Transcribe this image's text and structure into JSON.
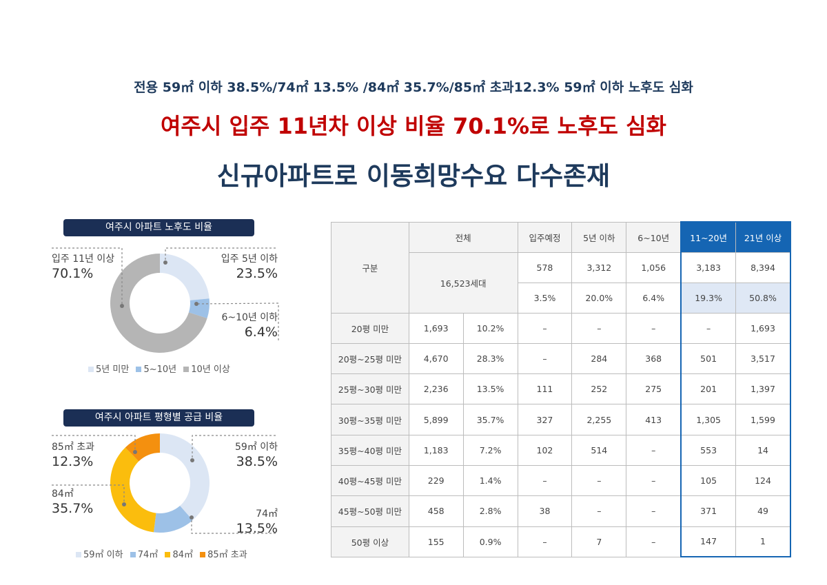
{
  "header": {
    "subtitle": "전용 59㎡ 이하 38.5%/74㎡ 13.5% /84㎡ 35.7%/85㎡ 초과12.3% 59㎡ 이하 노후도 심화",
    "headline_red": "여주시 입주 11년차 이상 비율 70.1%로 노후도 심화",
    "headline_main": "신규아파트로 이동희망수요 다수존재"
  },
  "colors": {
    "navy": "#1b2f55",
    "red": "#c00000",
    "blue": "#1565b3",
    "light_blue": "#dfe8f5",
    "slice_light": "#dce6f4",
    "slice_mid": "#9dc1e7",
    "slice_gray": "#b5b5b5",
    "slice_yellow": "#fbbd0d",
    "slice_orange": "#f4900f"
  },
  "chart_data": [
    {
      "type": "pie",
      "title": "여주시 아파트 노후도 비율",
      "slices": [
        {
          "legend": "5년 미만",
          "label": "입주 5년 이하",
          "value_text": "23.5%",
          "value": 23.5,
          "color": "#dce6f4"
        },
        {
          "legend": "5~10년",
          "label": "6~10년 이하",
          "value_text": "6.4%",
          "value": 6.4,
          "color": "#9dc1e7"
        },
        {
          "legend": "10년 이상",
          "label": "입주 11년 이상",
          "value_text": "70.1%",
          "value": 70.1,
          "color": "#b5b5b5"
        }
      ]
    },
    {
      "type": "pie",
      "title": "여주시 아파트 평형별 공급 비율",
      "slices": [
        {
          "legend": "59㎡ 이하",
          "label": "59㎡ 이하",
          "value_text": "38.5%",
          "value": 38.5,
          "color": "#dce6f4"
        },
        {
          "legend": "74㎡",
          "label": "74㎡",
          "value_text": "13.5%",
          "value": 13.5,
          "color": "#9dc1e7"
        },
        {
          "legend": "84㎡",
          "label": "84㎡",
          "value_text": "35.7%",
          "value": 35.7,
          "color": "#fbbd0d"
        },
        {
          "legend": "85㎡ 초과",
          "label": "85㎡ 초과",
          "value_text": "12.3%",
          "value": 12.3,
          "color": "#f4900f"
        }
      ]
    },
    {
      "type": "table",
      "header": {
        "gubun": "구분",
        "total": "전체",
        "total_value": "16,523세대",
        "cols": [
          "입주예정",
          "5년 이하",
          "6~10년",
          "11~20년",
          "21년 이상"
        ],
        "counts": [
          "578",
          "3,312",
          "1,056",
          "3,183",
          "8,394"
        ],
        "pcts": [
          "3.5%",
          "20.0%",
          "6.4%",
          "19.3%",
          "50.8%"
        ]
      },
      "rows": [
        {
          "label": "20평 미만",
          "total": "1,693",
          "pct": "10.2%",
          "vals": [
            "–",
            "–",
            "–",
            "–",
            "1,693"
          ]
        },
        {
          "label": "20평~25평 미만",
          "total": "4,670",
          "pct": "28.3%",
          "vals": [
            "–",
            "284",
            "368",
            "501",
            "3,517"
          ]
        },
        {
          "label": "25평~30평 미만",
          "total": "2,236",
          "pct": "13.5%",
          "vals": [
            "111",
            "252",
            "275",
            "201",
            "1,397"
          ]
        },
        {
          "label": "30평~35평 미만",
          "total": "5,899",
          "pct": "35.7%",
          "vals": [
            "327",
            "2,255",
            "413",
            "1,305",
            "1,599"
          ]
        },
        {
          "label": "35평~40평 미만",
          "total": "1,183",
          "pct": "7.2%",
          "vals": [
            "102",
            "514",
            "–",
            "553",
            "14"
          ]
        },
        {
          "label": "40평~45평 미만",
          "total": "229",
          "pct": "1.4%",
          "vals": [
            "–",
            "–",
            "–",
            "105",
            "124"
          ]
        },
        {
          "label": "45평~50평 미만",
          "total": "458",
          "pct": "2.8%",
          "vals": [
            "38",
            "–",
            "–",
            "371",
            "49"
          ]
        },
        {
          "label": "50평 이상",
          "total": "155",
          "pct": "0.9%",
          "vals": [
            "–",
            "7",
            "–",
            "147",
            "1"
          ]
        }
      ]
    }
  ]
}
